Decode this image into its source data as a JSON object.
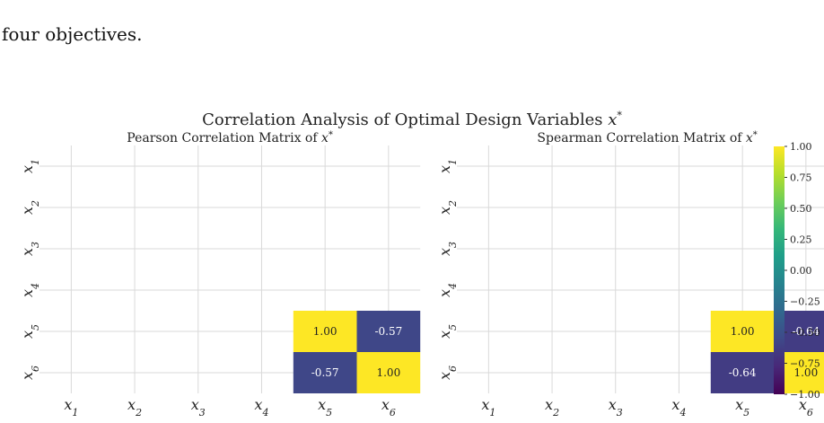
{
  "page": {
    "caption": "four objectives.",
    "figure_title": "Correlation Analysis of Optimal Design Variables x *"
  },
  "colors": {
    "grid": "#d9d9d9",
    "viridis": [
      "#440154",
      "#482878",
      "#3e4989",
      "#31688e",
      "#26828e",
      "#1f9e89",
      "#35b779",
      "#6ece58",
      "#b5de2b",
      "#fde725"
    ]
  },
  "chart_data": [
    {
      "type": "heatmap",
      "title": "Pearson Correlation Matrix of x *",
      "row_labels": [
        "x1",
        "x2",
        "x3",
        "x4",
        "x5",
        "x6"
      ],
      "col_labels": [
        "x1",
        "x2",
        "x3",
        "x4",
        "x5",
        "x6"
      ],
      "cells": [
        {
          "row": "x5",
          "col": "x5",
          "value": 1.0,
          "label": "1.00"
        },
        {
          "row": "x5",
          "col": "x6",
          "value": -0.57,
          "label": "-0.57"
        },
        {
          "row": "x6",
          "col": "x5",
          "value": -0.57,
          "label": "-0.57"
        },
        {
          "row": "x6",
          "col": "x6",
          "value": 1.0,
          "label": "1.00"
        }
      ],
      "vmin": -1.0,
      "vmax": 1.0,
      "grid": true
    },
    {
      "type": "heatmap",
      "title": "Spearman Correlation Matrix of x *",
      "row_labels": [
        "x1",
        "x2",
        "x3",
        "x4",
        "x5",
        "x6"
      ],
      "col_labels": [
        "x1",
        "x2",
        "x3",
        "x4",
        "x5",
        "x6"
      ],
      "cells": [
        {
          "row": "x5",
          "col": "x5",
          "value": 1.0,
          "label": "1.00"
        },
        {
          "row": "x5",
          "col": "x6",
          "value": -0.64,
          "label": "-0.64"
        },
        {
          "row": "x6",
          "col": "x5",
          "value": -0.64,
          "label": "-0.64"
        },
        {
          "row": "x6",
          "col": "x6",
          "value": 1.0,
          "label": "1.00"
        }
      ],
      "vmin": -1.0,
      "vmax": 1.0,
      "grid": true
    }
  ],
  "colorbar": {
    "ticks": [
      "1.00",
      "0.75",
      "0.50",
      "0.25",
      "0.00",
      "−0.25",
      "−0.50",
      "−0.75",
      "−1.00"
    ],
    "tick_values": [
      1.0,
      0.75,
      0.5,
      0.25,
      0.0,
      -0.25,
      -0.5,
      -0.75,
      -1.0
    ]
  }
}
